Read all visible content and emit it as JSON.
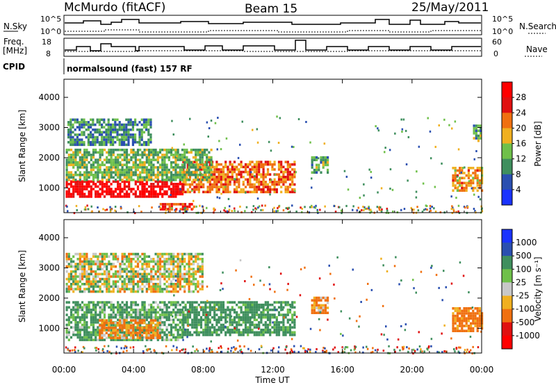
{
  "header": {
    "station": "McMurdo (fitACF)",
    "beam": "Beam 15",
    "date": "25/May/2011",
    "cpid_label": "CPID",
    "cpid_value": "normalsound (fast) 157 RF"
  },
  "strip": {
    "nsky_label": "N.Sky",
    "nsearch_label": "N.Search",
    "freq_label_1": "Freq.",
    "freq_label_2": "[MHz]",
    "nave_label": "Nave",
    "nsky_ticks": [
      "10^5",
      "10^0"
    ],
    "nsearch_ticks": [
      "10^5",
      "10^0"
    ],
    "freq_ticks": [
      "18",
      "8"
    ],
    "nave_ticks": [
      "60",
      "0"
    ]
  },
  "axes": {
    "xlabel": "Time UT",
    "ylabel": "Slant Range [km]",
    "xticks": [
      "00:00",
      "04:00",
      "08:00",
      "12:00",
      "16:00",
      "20:00",
      "00:00"
    ],
    "yticks": [
      "1000",
      "2000",
      "3000",
      "4000"
    ]
  },
  "power_bar": {
    "label": "Power [dB]",
    "ticks": [
      "4",
      "8",
      "12",
      "16",
      "20",
      "24",
      "28"
    ]
  },
  "velocity_bar": {
    "label": "Velocity [m s⁻¹]",
    "ticks": [
      "1000",
      "500",
      "100",
      "25",
      "-25",
      "-100",
      "-500",
      "-1000"
    ]
  },
  "chart_data": [
    {
      "type": "heatmap",
      "title": "",
      "xlabel": "Time UT",
      "ylabel": "Slant Range [km]",
      "xlim": [
        0,
        24
      ],
      "ylim": [
        180,
        4600
      ],
      "colorbar_label": "Power [dB]",
      "color_levels": [
        4,
        8,
        12,
        16,
        20,
        24,
        28
      ],
      "colors": [
        "#1a33ff",
        "#2a4fb0",
        "#3f8f5e",
        "#6fc04a",
        "#f0b020",
        "#f07010",
        "#e01010",
        "#ff0000"
      ],
      "regions": [
        {
          "t0": 0.1,
          "t1": 6.8,
          "r0": 700,
          "r1": 1250,
          "value": 30
        },
        {
          "t0": 6.8,
          "t1": 13.2,
          "r0": 900,
          "r1": 1900,
          "value": 22
        },
        {
          "t0": 0.1,
          "t1": 8.5,
          "r0": 1300,
          "r1": 2300,
          "value": 13
        },
        {
          "t0": 0.2,
          "t1": 5.0,
          "r0": 2400,
          "r1": 3300,
          "value": 10
        },
        {
          "t0": 5.5,
          "t1": 7.5,
          "r0": 300,
          "r1": 500,
          "value": 25
        },
        {
          "t0": 14.2,
          "t1": 15.2,
          "r0": 1550,
          "r1": 2050,
          "value": 12
        },
        {
          "t0": 22.3,
          "t1": 24.0,
          "r0": 900,
          "r1": 1700,
          "value": 20
        },
        {
          "t0": 23.5,
          "t1": 24.0,
          "r0": 2600,
          "r1": 3100,
          "value": 12
        }
      ]
    },
    {
      "type": "heatmap",
      "title": "",
      "xlabel": "Time UT",
      "ylabel": "Slant Range [km]",
      "xlim": [
        0,
        24
      ],
      "ylim": [
        180,
        4600
      ],
      "colorbar_label": "Velocity [m s⁻¹]",
      "color_levels": [
        1000,
        500,
        100,
        25,
        -25,
        -100,
        -500,
        -1000
      ],
      "colors": [
        "#1a33ff",
        "#2a4fb0",
        "#3f8f5e",
        "#6fc04a",
        "#c8c8c8",
        "#f0b020",
        "#f07010",
        "#e01010",
        "#ff0000"
      ],
      "regions": [
        {
          "t0": 0.1,
          "t1": 6.8,
          "r0": 600,
          "r1": 1900,
          "value": 150
        },
        {
          "t0": 2.0,
          "t1": 5.5,
          "r0": 700,
          "r1": 1300,
          "value": -150
        },
        {
          "t0": 6.8,
          "t1": 13.2,
          "r0": 800,
          "r1": 1900,
          "value": 200
        },
        {
          "t0": 0.1,
          "t1": 8.0,
          "r0": 2200,
          "r1": 3500,
          "value": 0
        },
        {
          "t0": 14.2,
          "t1": 15.2,
          "r0": 1550,
          "r1": 2050,
          "value": -150
        },
        {
          "t0": 22.3,
          "t1": 24.0,
          "r0": 900,
          "r1": 1700,
          "value": -200
        }
      ]
    }
  ]
}
